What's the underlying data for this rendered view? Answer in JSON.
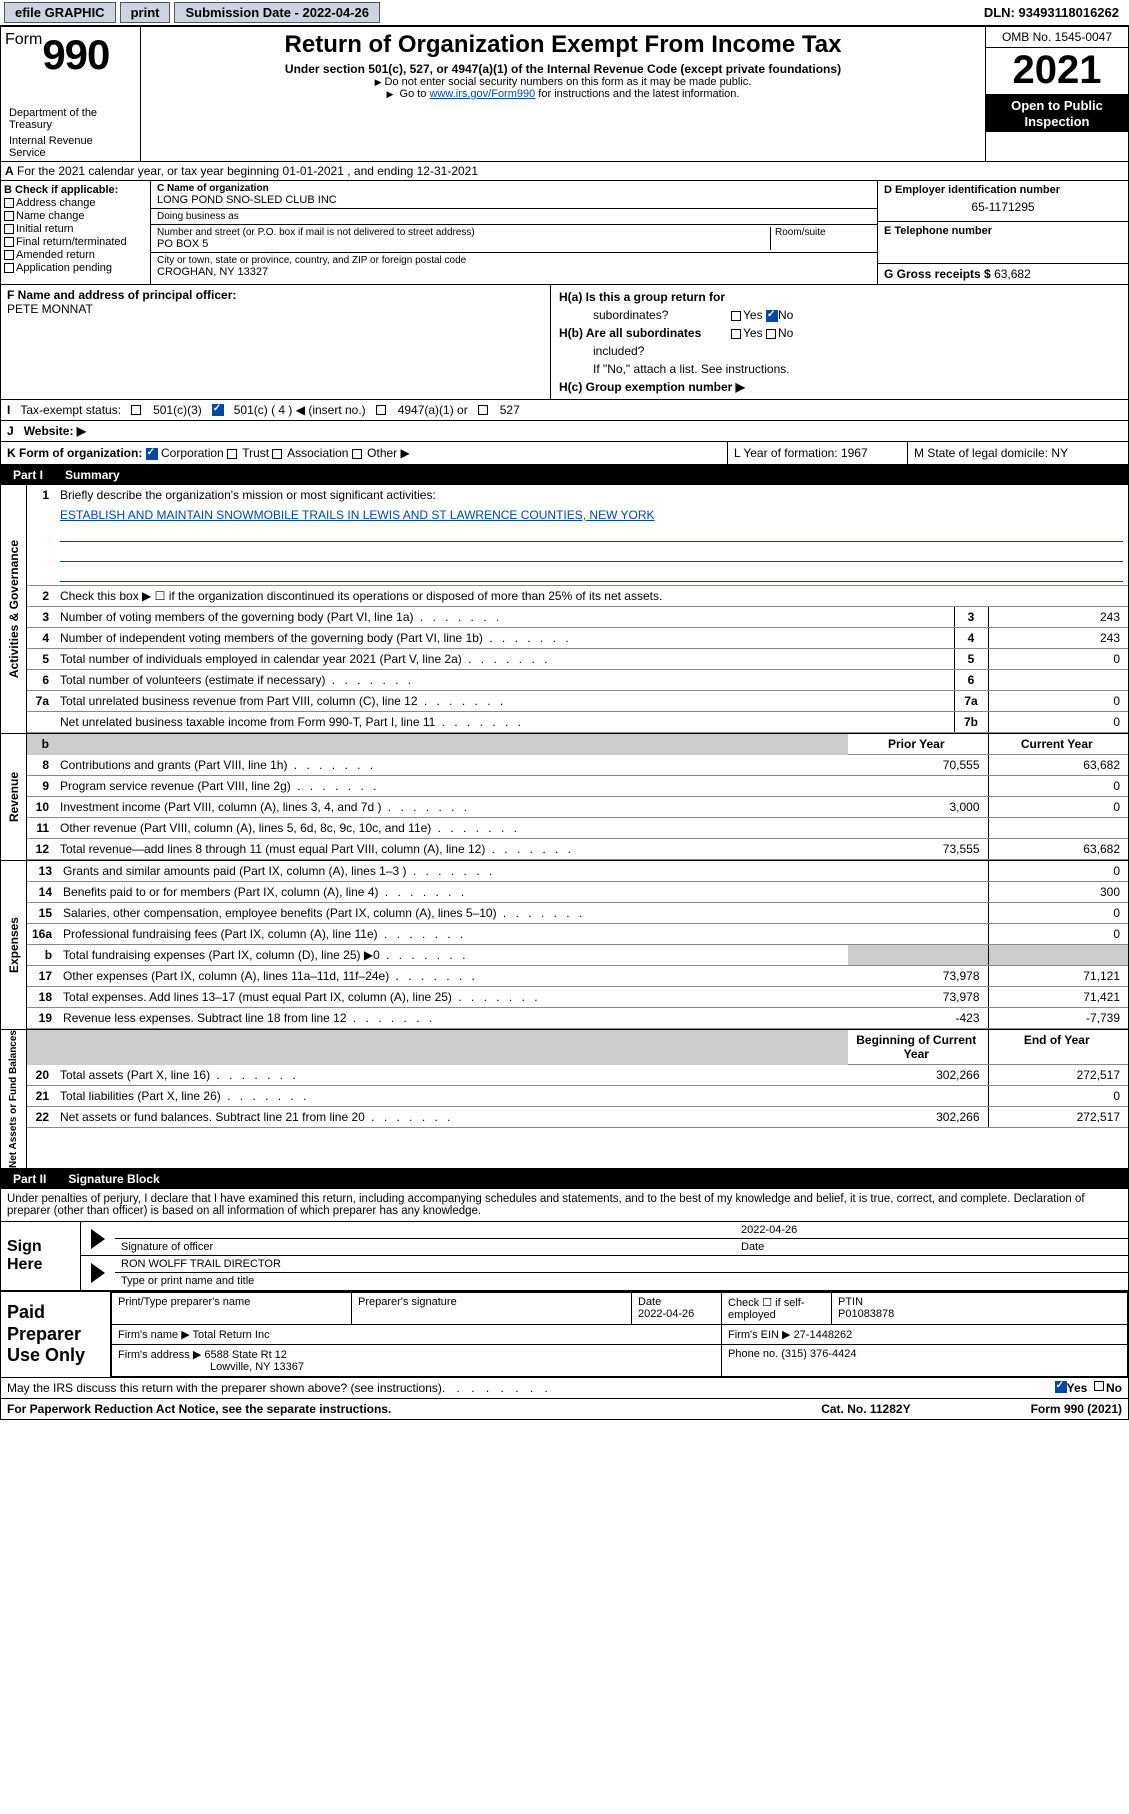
{
  "colors": {
    "blue": "#0048a8",
    "gray": "#ccc",
    "btn_bg": "#cdd3e0"
  },
  "topbar": {
    "efile": "efile GRAPHIC",
    "print": "print",
    "subdate_label": "Submission Date - 2022-04-26",
    "dln": "DLN: 93493118016262"
  },
  "header": {
    "form_word": "Form",
    "form_num": "990",
    "title": "Return of Organization Exempt From Income Tax",
    "line1": "Under section 501(c), 527, or 4947(a)(1) of the Internal Revenue Code (except private foundations)",
    "line2": "Do not enter social security numbers on this form as it may be made public.",
    "line3_pre": "Go to ",
    "line3_link": "www.irs.gov/Form990",
    "line3_post": " for instructions and the latest information.",
    "dept": "Department of the Treasury",
    "irs": "Internal Revenue Service",
    "omb": "OMB No. 1545-0047",
    "year": "2021",
    "open1": "Open to Public",
    "open2": "Inspection"
  },
  "A": {
    "text": "For the 2021 calendar year, or tax year beginning 01-01-2021     , and ending 12-31-2021",
    "label": "A"
  },
  "B": {
    "hdr": "B Check if applicable:",
    "i1": "Address change",
    "i2": "Name change",
    "i3": "Initial return",
    "i4": "Final return/terminated",
    "i5": "Amended return",
    "i6": "Application pending"
  },
  "C": {
    "name_lbl": "C Name of organization",
    "name": "LONG POND SNO-SLED CLUB INC",
    "dba_lbl": "Doing business as",
    "dba": "",
    "addr_lbl": "Number and street (or P.O. box if mail is not delivered to street address)",
    "suite_lbl": "Room/suite",
    "addr": "PO BOX 5",
    "city_lbl": "City or town, state or province, country, and ZIP or foreign postal code",
    "city": "CROGHAN, NY  13327"
  },
  "D": {
    "lbl": "D Employer identification number",
    "val": "65-1171295"
  },
  "E": {
    "lbl": "E Telephone number",
    "val": ""
  },
  "G": {
    "lbl": "G Gross receipts $",
    "val": "63,682"
  },
  "F": {
    "lbl": "F  Name and address of principal officer:",
    "name": "PETE MONNAT"
  },
  "H": {
    "a": "H(a)  Is this a group return for",
    "a2": "subordinates?",
    "b": "H(b)  Are all subordinates",
    "b2": "included?",
    "note": "If \"No,\" attach a list. See instructions.",
    "c": "H(c)  Group exemption number ▶",
    "yes": "Yes",
    "no": "No"
  },
  "I": {
    "lbl": "Tax-exempt status:",
    "o1": "501(c)(3)",
    "o2": "501(c) ( 4 ) ◀ (insert no.)",
    "o3": "4947(a)(1) or",
    "o4": "527"
  },
  "J": {
    "lbl": "Website: ▶"
  },
  "K": {
    "lbl": "K Form of organization:",
    "o1": "Corporation",
    "o2": "Trust",
    "o3": "Association",
    "o4": "Other ▶"
  },
  "L": {
    "lbl": "L Year of formation: 1967"
  },
  "M": {
    "lbl": "M State of legal domicile: NY"
  },
  "partI": {
    "tab": "Part I",
    "title": "Summary",
    "q1a": "Briefly describe the organization's mission or most significant activities:",
    "q1b": "ESTABLISH AND MAINTAIN SNOWMOBILE TRAILS IN LEWIS AND ST LAWRENCE COUNTIES, NEW YORK",
    "q2": "Check this box ▶ ☐  if the organization discontinued its operations or disposed of more than 25% of its net assets."
  },
  "vtabs": {
    "ag": "Activities & Governance",
    "rev": "Revenue",
    "exp": "Expenses",
    "na": "Net Assets or\nFund Balances"
  },
  "rows_ag": [
    {
      "n": "3",
      "t": "Number of voting members of the governing body (Part VI, line 1a)",
      "rn": "3",
      "v": "243"
    },
    {
      "n": "4",
      "t": "Number of independent voting members of the governing body (Part VI, line 1b)",
      "rn": "4",
      "v": "243"
    },
    {
      "n": "5",
      "t": "Total number of individuals employed in calendar year 2021 (Part V, line 2a)",
      "rn": "5",
      "v": "0"
    },
    {
      "n": "6",
      "t": "Total number of volunteers (estimate if necessary)",
      "rn": "6",
      "v": ""
    },
    {
      "n": "7a",
      "t": "Total unrelated business revenue from Part VIII, column (C), line 12",
      "rn": "7a",
      "v": "0"
    },
    {
      "n": "",
      "t": "Net unrelated business taxable income from Form 990-T, Part I, line 11",
      "rn": "7b",
      "v": "0"
    }
  ],
  "rev_hdr": {
    "prior": "Prior Year",
    "curr": "Current Year"
  },
  "rows_rev": [
    {
      "n": "8",
      "t": "Contributions and grants (Part VIII, line 1h)",
      "p": "70,555",
      "c": "63,682"
    },
    {
      "n": "9",
      "t": "Program service revenue (Part VIII, line 2g)",
      "p": "",
      "c": "0"
    },
    {
      "n": "10",
      "t": "Investment income (Part VIII, column (A), lines 3, 4, and 7d )",
      "p": "3,000",
      "c": "0"
    },
    {
      "n": "11",
      "t": "Other revenue (Part VIII, column (A), lines 5, 6d, 8c, 9c, 10c, and 11e)",
      "p": "",
      "c": ""
    },
    {
      "n": "12",
      "t": "Total revenue—add lines 8 through 11 (must equal Part VIII, column (A), line 12)",
      "p": "73,555",
      "c": "63,682"
    }
  ],
  "rows_exp": [
    {
      "n": "13",
      "t": "Grants and similar amounts paid (Part IX, column (A), lines 1–3 )",
      "p": "",
      "c": "0"
    },
    {
      "n": "14",
      "t": "Benefits paid to or for members (Part IX, column (A), line 4)",
      "p": "",
      "c": "300"
    },
    {
      "n": "15",
      "t": "Salaries, other compensation, employee benefits (Part IX, column (A), lines 5–10)",
      "p": "",
      "c": "0"
    },
    {
      "n": "16a",
      "t": "Professional fundraising fees (Part IX, column (A), line 11e)",
      "p": "",
      "c": "0"
    },
    {
      "n": "b",
      "t": "Total fundraising expenses (Part IX, column (D), line 25) ▶0",
      "p": "SHADE",
      "c": "SHADE"
    },
    {
      "n": "17",
      "t": "Other expenses (Part IX, column (A), lines 11a–11d, 11f–24e)",
      "p": "73,978",
      "c": "71,121"
    },
    {
      "n": "18",
      "t": "Total expenses. Add lines 13–17 (must equal Part IX, column (A), line 25)",
      "p": "73,978",
      "c": "71,421"
    },
    {
      "n": "19",
      "t": "Revenue less expenses. Subtract line 18 from line 12",
      "p": "-423",
      "c": "-7,739"
    }
  ],
  "na_hdr": {
    "b": "Beginning of Current Year",
    "e": "End of Year"
  },
  "rows_na": [
    {
      "n": "20",
      "t": "Total assets (Part X, line 16)",
      "p": "302,266",
      "c": "272,517"
    },
    {
      "n": "21",
      "t": "Total liabilities (Part X, line 26)",
      "p": "",
      "c": "0"
    },
    {
      "n": "22",
      "t": "Net assets or fund balances. Subtract line 21 from line 20",
      "p": "302,266",
      "c": "272,517"
    }
  ],
  "partII": {
    "tab": "Part II",
    "title": "Signature Block"
  },
  "perjury": "Under penalties of perjury, I declare that I have examined this return, including accompanying schedules and statements, and to the best of my knowledge and belief, it is true, correct, and complete. Declaration of preparer (other than officer) is based on all information of which preparer has any knowledge.",
  "sign": {
    "here": "Sign Here",
    "sig_lbl": "Signature of officer",
    "date_lbl": "Date",
    "date": "2022-04-26",
    "name": "RON WOLFF TRAIL DIRECTOR",
    "name_lbl": "Type or print name and title"
  },
  "paid": {
    "lbl": "Paid Preparer Use Only",
    "c1": "Print/Type preparer's name",
    "c2": "Preparer's signature",
    "c3": "Date",
    "c3v": "2022-04-26",
    "c4": "Check ☐ if self-employed",
    "c5": "PTIN",
    "c5v": "P01083878",
    "firm_lbl": "Firm's name    ▶",
    "firm": "Total Return Inc",
    "ein_lbl": "Firm's EIN ▶",
    "ein": "27-1448262",
    "addr_lbl": "Firm's address ▶",
    "addr1": "6588 State Rt 12",
    "addr2": "Lowville, NY  13367",
    "phone_lbl": "Phone no.",
    "phone": "(315) 376-4424"
  },
  "footer": {
    "q": "May the IRS discuss this return with the preparer shown above? (see instructions)",
    "yes": "Yes",
    "no": "No",
    "paperwork": "For Paperwork Reduction Act Notice, see the separate instructions.",
    "cat": "Cat. No. 11282Y",
    "form": "Form 990 (2021)"
  }
}
